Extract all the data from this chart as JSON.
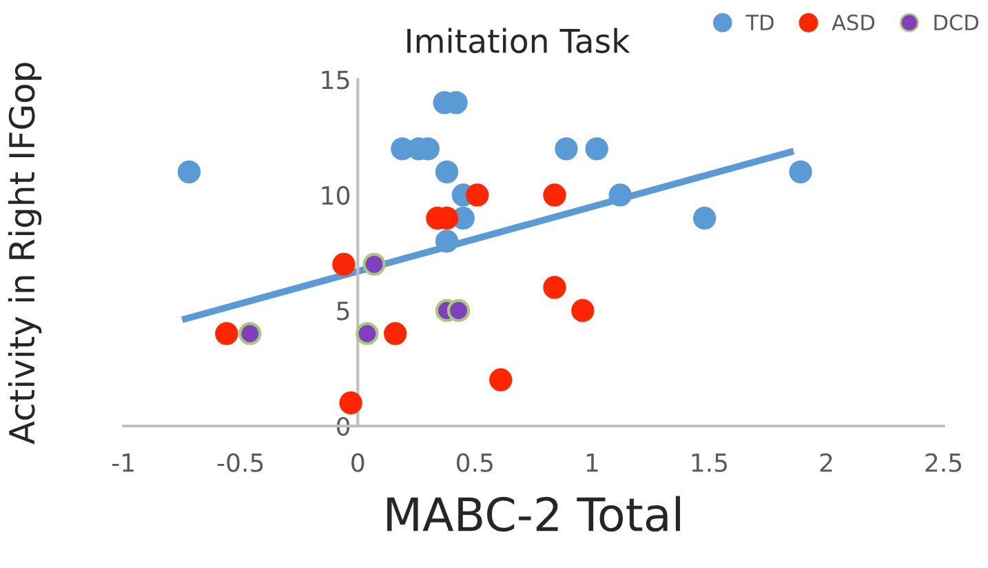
{
  "chart_data": {
    "type": "scatter",
    "title": "Imitation Task",
    "xlabel": "MABC-2 Total",
    "ylabel": "Activity in Right IFGop",
    "xlim": [
      -1,
      2.5
    ],
    "xticks": [
      -1,
      -0.5,
      0,
      0.5,
      1,
      1.5,
      2,
      2.5
    ],
    "ylim": [
      0,
      15
    ],
    "yticks": [
      0,
      5,
      10,
      15
    ],
    "grid": false,
    "legend": "top right",
    "marker": "circle",
    "series": [
      {
        "name": "TD",
        "color": "#5b9bd5",
        "x": [
          -0.72,
          0.19,
          0.26,
          0.3,
          0.37,
          0.42,
          0.38,
          0.45,
          0.45,
          0.38,
          0.89,
          1.02,
          1.12,
          1.48,
          1.89
        ],
        "values": [
          11,
          12,
          12,
          12,
          14,
          14,
          11,
          10,
          9,
          8,
          12,
          12,
          10,
          9,
          11
        ]
      },
      {
        "name": "ASD",
        "color": "#ff2600",
        "x": [
          -0.56,
          -0.06,
          -0.03,
          0.16,
          0.34,
          0.38,
          0.51,
          0.61,
          0.84,
          0.84,
          0.96
        ],
        "values": [
          4,
          7,
          1,
          4,
          9,
          9,
          10,
          2,
          10,
          6,
          5
        ]
      },
      {
        "name": "DCD",
        "color": "#7f3fbf",
        "x": [
          -0.46,
          0.07,
          0.04,
          0.38,
          0.43
        ],
        "values": [
          4,
          7,
          4,
          5,
          5
        ]
      },
      {
        "type": "line",
        "marker": "none",
        "color": "#5b9bd5",
        "x": [
          -0.75,
          1.86
        ],
        "values": [
          4.6,
          11.9
        ]
      }
    ]
  }
}
